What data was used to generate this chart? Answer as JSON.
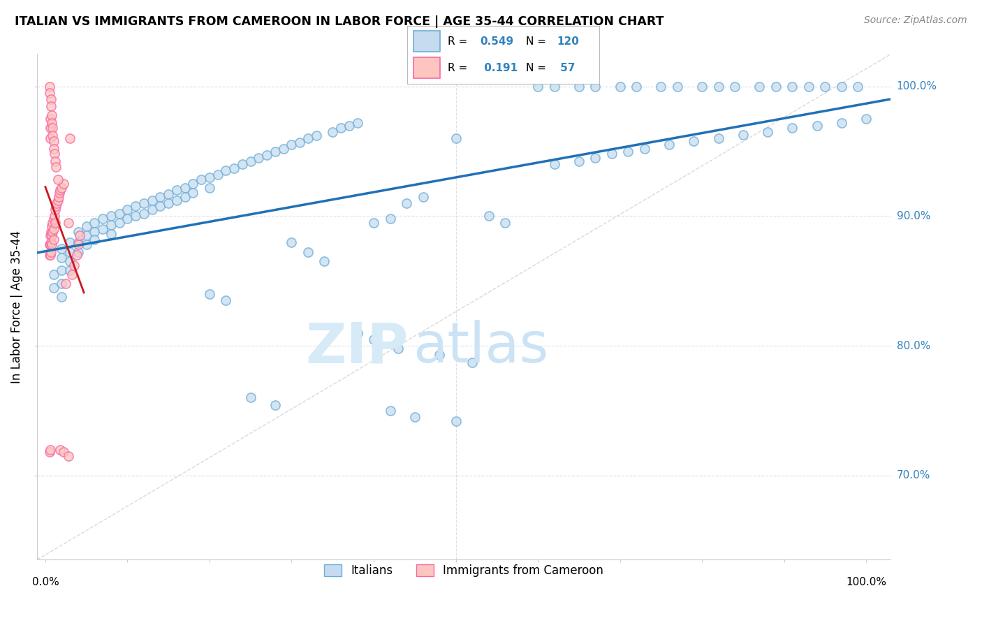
{
  "title": "ITALIAN VS IMMIGRANTS FROM CAMEROON IN LABOR FORCE | AGE 35-44 CORRELATION CHART",
  "source": "Source: ZipAtlas.com",
  "ylabel": "In Labor Force | Age 35-44",
  "ytick_values": [
    0.7,
    0.8,
    0.9,
    1.0
  ],
  "ytick_labels": [
    "70.0%",
    "80.0%",
    "90.0%",
    "100.0%"
  ],
  "xlim": [
    -0.01,
    1.03
  ],
  "ylim": [
    0.635,
    1.025
  ],
  "blue_fill": "#c6dbef",
  "blue_edge": "#6baed6",
  "pink_fill": "#fcc5c0",
  "pink_edge": "#f768a1",
  "blue_line_color": "#2171b5",
  "pink_line_color": "#cb181d",
  "grid_color": "#e0e0e0",
  "diag_color": "#d0d0d0",
  "right_label_color": "#3182bd",
  "watermark_zip_color": "#d0e4f5",
  "watermark_atlas_color": "#c5ddf0",
  "blue_x": [
    0.01,
    0.01,
    0.02,
    0.02,
    0.02,
    0.02,
    0.02,
    0.03,
    0.03,
    0.03,
    0.03,
    0.04,
    0.04,
    0.04,
    0.05,
    0.05,
    0.05,
    0.06,
    0.06,
    0.06,
    0.07,
    0.07,
    0.08,
    0.08,
    0.08,
    0.09,
    0.09,
    0.1,
    0.1,
    0.11,
    0.11,
    0.12,
    0.12,
    0.13,
    0.13,
    0.14,
    0.14,
    0.15,
    0.15,
    0.16,
    0.16,
    0.17,
    0.17,
    0.18,
    0.18,
    0.19,
    0.2,
    0.2,
    0.21,
    0.22,
    0.23,
    0.24,
    0.25,
    0.26,
    0.27,
    0.28,
    0.29,
    0.3,
    0.31,
    0.32,
    0.33,
    0.35,
    0.36,
    0.37,
    0.38,
    0.4,
    0.42,
    0.44,
    0.46,
    0.5,
    0.54,
    0.56,
    0.6,
    0.62,
    0.65,
    0.67,
    0.7,
    0.72,
    0.75,
    0.77,
    0.8,
    0.82,
    0.84,
    0.87,
    0.89,
    0.91,
    0.93,
    0.95,
    0.97,
    0.99,
    0.62,
    0.65,
    0.67,
    0.69,
    0.71,
    0.73,
    0.76,
    0.79,
    0.82,
    0.85,
    0.88,
    0.91,
    0.94,
    0.97,
    1.0,
    0.38,
    0.4,
    0.43,
    0.48,
    0.52,
    0.3,
    0.32,
    0.34,
    0.2,
    0.22,
    0.25,
    0.28,
    0.42,
    0.45,
    0.5
  ],
  "blue_y": [
    0.855,
    0.845,
    0.875,
    0.868,
    0.858,
    0.848,
    0.838,
    0.88,
    0.872,
    0.865,
    0.858,
    0.888,
    0.88,
    0.872,
    0.892,
    0.885,
    0.878,
    0.895,
    0.888,
    0.882,
    0.898,
    0.89,
    0.9,
    0.893,
    0.886,
    0.902,
    0.895,
    0.905,
    0.898,
    0.908,
    0.9,
    0.91,
    0.902,
    0.912,
    0.905,
    0.915,
    0.908,
    0.917,
    0.91,
    0.92,
    0.912,
    0.922,
    0.915,
    0.925,
    0.918,
    0.928,
    0.93,
    0.922,
    0.932,
    0.935,
    0.937,
    0.94,
    0.942,
    0.945,
    0.947,
    0.95,
    0.952,
    0.955,
    0.957,
    0.96,
    0.962,
    0.965,
    0.968,
    0.97,
    0.972,
    0.895,
    0.898,
    0.91,
    0.915,
    0.96,
    0.9,
    0.895,
    1.0,
    1.0,
    1.0,
    1.0,
    1.0,
    1.0,
    1.0,
    1.0,
    1.0,
    1.0,
    1.0,
    1.0,
    1.0,
    1.0,
    1.0,
    1.0,
    1.0,
    1.0,
    0.94,
    0.942,
    0.945,
    0.948,
    0.95,
    0.952,
    0.955,
    0.958,
    0.96,
    0.963,
    0.965,
    0.968,
    0.97,
    0.972,
    0.975,
    0.81,
    0.805,
    0.798,
    0.793,
    0.787,
    0.88,
    0.872,
    0.865,
    0.84,
    0.835,
    0.76,
    0.754,
    0.75,
    0.745,
    0.742
  ],
  "pink_x": [
    0.005,
    0.005,
    0.006,
    0.006,
    0.006,
    0.007,
    0.007,
    0.007,
    0.008,
    0.008,
    0.008,
    0.009,
    0.009,
    0.01,
    0.01,
    0.01,
    0.011,
    0.012,
    0.012,
    0.013,
    0.014,
    0.015,
    0.016,
    0.017,
    0.018,
    0.02,
    0.022,
    0.025,
    0.028,
    0.03,
    0.032,
    0.035,
    0.038,
    0.04,
    0.042,
    0.005,
    0.005,
    0.006,
    0.006,
    0.006,
    0.007,
    0.007,
    0.008,
    0.008,
    0.009,
    0.009,
    0.01,
    0.01,
    0.011,
    0.012,
    0.013,
    0.015,
    0.018,
    0.022,
    0.028,
    0.005,
    0.006
  ],
  "pink_y": [
    0.878,
    0.87,
    0.885,
    0.878,
    0.87,
    0.888,
    0.88,
    0.872,
    0.892,
    0.885,
    0.878,
    0.895,
    0.888,
    0.898,
    0.89,
    0.882,
    0.9,
    0.905,
    0.895,
    0.908,
    0.91,
    0.912,
    0.915,
    0.918,
    0.92,
    0.922,
    0.925,
    0.848,
    0.895,
    0.96,
    0.855,
    0.862,
    0.87,
    0.878,
    0.885,
    1.0,
    0.995,
    0.975,
    0.968,
    0.96,
    0.99,
    0.985,
    0.978,
    0.972,
    0.968,
    0.962,
    0.958,
    0.952,
    0.948,
    0.942,
    0.938,
    0.928,
    0.72,
    0.718,
    0.715,
    0.718,
    0.72
  ]
}
